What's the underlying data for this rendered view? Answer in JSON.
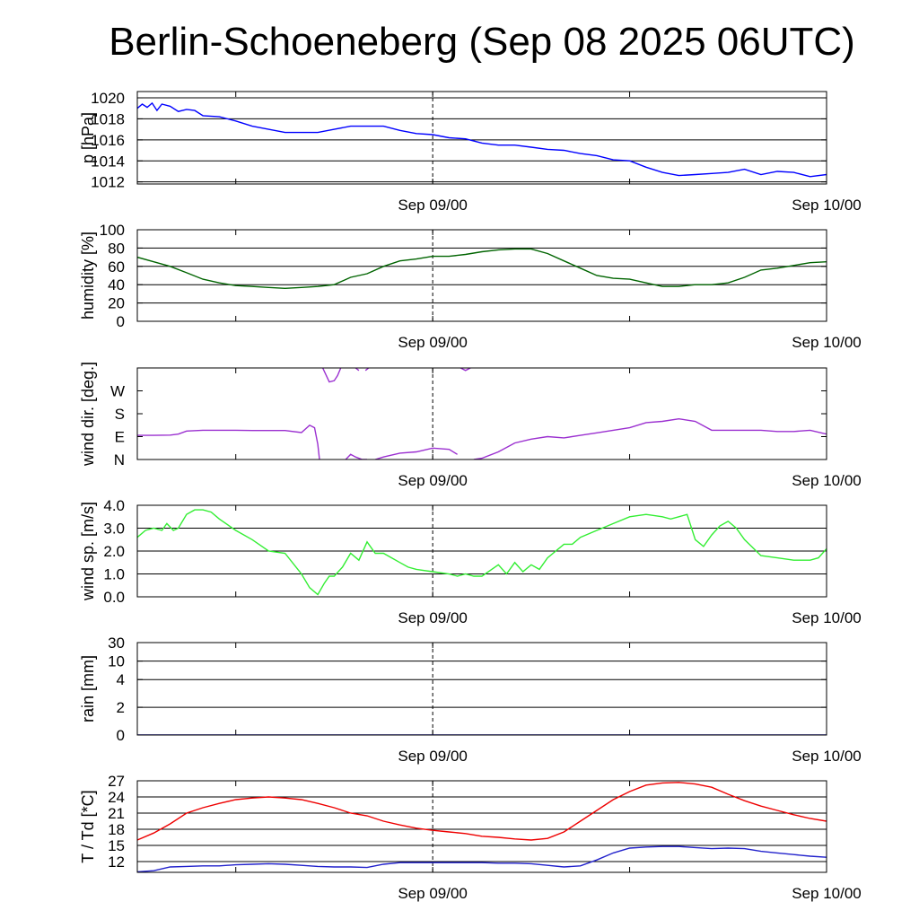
{
  "title": "Berlin-Schoeneberg (Sep 08 2025 06UTC)",
  "time_axis": {
    "start": "Sep 08 06UTC",
    "end": "Sep 10 00UTC",
    "labels": [
      {
        "at_hour": 18,
        "text": "Sep 09/00"
      },
      {
        "at_hour": 42,
        "text": "Sep 10/00"
      }
    ],
    "minor_ticks_hours": [
      6,
      18,
      30,
      42
    ],
    "dashed_line_hour": 18
  },
  "chart_data": [
    {
      "type": "line",
      "ylabel": "p [hPa]",
      "ylim": [
        1011.8,
        1020.6
      ],
      "yticks": [
        1012,
        1014,
        1016,
        1018,
        1020
      ],
      "ytick_labels": [
        "1012",
        "1014",
        "1016",
        "1018",
        "1020"
      ],
      "grid": true,
      "color": "#0000ff",
      "x_hours": [
        0,
        0.3,
        0.6,
        0.9,
        1.2,
        1.5,
        2,
        2.5,
        3,
        3.5,
        4,
        5,
        6,
        7,
        8,
        9,
        10,
        11,
        12,
        13,
        14,
        15,
        16,
        17,
        18,
        19,
        20,
        21,
        22,
        23,
        24,
        25,
        26,
        27,
        28,
        29,
        30,
        31,
        32,
        33,
        34,
        35,
        36,
        37,
        38,
        39,
        40,
        41,
        42
      ],
      "y": [
        1019.0,
        1019.4,
        1019.1,
        1019.5,
        1018.8,
        1019.4,
        1019.2,
        1018.7,
        1018.9,
        1018.8,
        1018.3,
        1018.2,
        1017.8,
        1017.3,
        1017.0,
        1016.7,
        1016.7,
        1016.7,
        1017.0,
        1017.3,
        1017.3,
        1017.3,
        1016.9,
        1016.6,
        1016.5,
        1016.2,
        1016.1,
        1015.7,
        1015.5,
        1015.5,
        1015.3,
        1015.1,
        1015.0,
        1014.7,
        1014.5,
        1014.1,
        1014.0,
        1013.4,
        1012.9,
        1012.6,
        1012.7,
        1012.8,
        1012.9,
        1013.2,
        1012.7,
        1013.0,
        1012.9,
        1012.5,
        1012.7
      ]
    },
    {
      "type": "line",
      "ylabel": "humidity [%]",
      "ylim": [
        0,
        100
      ],
      "yticks": [
        0,
        20,
        40,
        60,
        80,
        100
      ],
      "ytick_labels": [
        "0",
        "20",
        "40",
        "60",
        "80",
        "100"
      ],
      "grid": true,
      "color": "#006400",
      "x_hours": [
        0,
        1,
        2,
        3,
        4,
        5,
        6,
        7,
        8,
        9,
        10,
        11,
        12,
        13,
        14,
        15,
        16,
        17,
        18,
        19,
        20,
        21,
        22,
        23,
        24,
        25,
        26,
        27,
        28,
        29,
        30,
        31,
        32,
        33,
        34,
        35,
        36,
        37,
        38,
        39,
        40,
        41,
        42
      ],
      "y": [
        70,
        65,
        60,
        53,
        46,
        42,
        39,
        38,
        37,
        36,
        37,
        38,
        40,
        48,
        52,
        60,
        66,
        68,
        71,
        71,
        73,
        76,
        78,
        79,
        79,
        74,
        66,
        58,
        50,
        47,
        46,
        42,
        38,
        38,
        40,
        40,
        42,
        48,
        56,
        58,
        61,
        64,
        65
      ]
    },
    {
      "type": "line",
      "ylabel": "wind dir. [deg.]",
      "ylim": [
        0,
        360
      ],
      "yticks": [
        0,
        90,
        180,
        270
      ],
      "ytick_labels": [
        "N",
        "E",
        "S",
        "W"
      ],
      "grid": false,
      "color": "#9b30d0",
      "segments": [
        {
          "x_hours": [
            0,
            1,
            2,
            2.5,
            3,
            4,
            5,
            6,
            7,
            8,
            9,
            10,
            10.5,
            10.8,
            11,
            11.1
          ],
          "y": [
            95,
            95,
            96,
            100,
            112,
            115,
            115,
            115,
            114,
            114,
            114,
            106,
            135,
            125,
            60,
            0
          ]
        },
        {
          "x_hours": [
            11.3,
            11.7,
            12,
            12.2,
            12.4
          ],
          "y": [
            360,
            305,
            310,
            330,
            360
          ]
        },
        {
          "x_hours": [
            13.3,
            13.5
          ],
          "y": [
            360,
            350
          ]
        },
        {
          "x_hours": [
            13.9,
            14.1
          ],
          "y": [
            350,
            360
          ]
        },
        {
          "x_hours": [
            12.7,
            13.0,
            13.3,
            13.7,
            14.0
          ],
          "y": [
            0,
            20,
            10,
            0,
            0
          ]
        },
        {
          "x_hours": [
            14.5,
            15,
            16,
            17,
            18,
            19,
            19.5
          ],
          "y": [
            0,
            10,
            25,
            30,
            45,
            40,
            20
          ]
        },
        {
          "x_hours": [
            19.7,
            20.0,
            20.3
          ],
          "y": [
            360,
            350,
            360
          ]
        },
        {
          "x_hours": [
            20.5,
            21,
            22,
            23,
            24,
            25,
            26,
            27,
            28,
            29,
            30,
            31,
            32,
            33,
            34,
            35,
            36,
            37,
            38,
            39,
            40,
            41,
            42
          ],
          "y": [
            0,
            5,
            30,
            65,
            80,
            90,
            85,
            95,
            105,
            115,
            125,
            145,
            150,
            160,
            150,
            115,
            115,
            115,
            115,
            110,
            110,
            115,
            100
          ]
        }
      ]
    },
    {
      "type": "line",
      "ylabel": "wind sp. [m/s]",
      "ylim": [
        0,
        4.0
      ],
      "yticks": [
        0,
        1,
        2,
        3,
        4
      ],
      "ytick_labels": [
        "0.0",
        "1.0",
        "2.0",
        "3.0",
        "4.0"
      ],
      "grid": true,
      "color": "#33ee33",
      "x_hours": [
        0,
        0.5,
        1,
        1.5,
        1.8,
        2.2,
        2.5,
        3,
        3.5,
        4,
        4.5,
        5,
        6,
        7,
        8,
        9,
        10,
        10.5,
        11,
        11.4,
        11.7,
        12,
        12.5,
        13,
        13.5,
        14,
        14.5,
        15,
        15.5,
        16,
        16.5,
        17,
        18,
        19,
        19.5,
        20,
        20.5,
        21,
        22,
        22.5,
        23,
        23.5,
        24,
        24.5,
        25,
        26,
        26.5,
        27,
        28,
        29,
        30,
        31,
        32,
        32.5,
        33,
        33.5,
        34,
        34.5,
        35,
        35.5,
        36,
        36.5,
        37,
        38,
        39,
        40,
        41,
        41.5,
        42
      ],
      "y": [
        2.6,
        2.9,
        3.0,
        2.9,
        3.2,
        2.9,
        3.0,
        3.6,
        3.8,
        3.8,
        3.7,
        3.4,
        2.9,
        2.5,
        2.0,
        1.9,
        1.0,
        0.4,
        0.1,
        0.6,
        0.9,
        0.9,
        1.3,
        1.9,
        1.6,
        2.4,
        1.9,
        1.9,
        1.7,
        1.5,
        1.3,
        1.2,
        1.1,
        1.0,
        0.9,
        1.0,
        0.9,
        0.9,
        1.4,
        1.0,
        1.5,
        1.1,
        1.4,
        1.2,
        1.7,
        2.3,
        2.3,
        2.6,
        2.9,
        3.2,
        3.5,
        3.6,
        3.5,
        3.4,
        3.5,
        3.6,
        2.5,
        2.2,
        2.7,
        3.1,
        3.3,
        3.0,
        2.5,
        1.8,
        1.7,
        1.6,
        1.6,
        1.7,
        2.1
      ]
    },
    {
      "type": "line",
      "ylabel": "rain [mm]",
      "ylim": [
        0,
        30
      ],
      "yticks": [
        0,
        2,
        4,
        10,
        30
      ],
      "ytick_labels": [
        "0",
        "2",
        "4",
        "10",
        "30"
      ],
      "grid": true,
      "color": "#0000aa",
      "x_hours": [
        0,
        42
      ],
      "y": [
        0,
        0
      ]
    },
    {
      "type": "line",
      "ylabel": "T / Td [*C]",
      "ylim": [
        10,
        27
      ],
      "yticks": [
        12,
        15,
        18,
        21,
        24,
        27
      ],
      "ytick_labels": [
        "12",
        "15",
        "18",
        "21",
        "24",
        "27"
      ],
      "grid": true,
      "series": [
        {
          "color": "#ee0000",
          "x_hours": [
            0,
            1,
            2,
            3,
            4,
            5,
            6,
            7,
            8,
            9,
            10,
            11,
            12,
            13,
            14,
            15,
            16,
            17,
            18,
            19,
            20,
            21,
            22,
            23,
            24,
            25,
            26,
            27,
            28,
            29,
            30,
            31,
            32,
            33,
            34,
            35,
            36,
            37,
            38,
            39,
            40,
            41,
            42
          ],
          "y": [
            16.0,
            17.3,
            19.0,
            21.0,
            22.0,
            22.8,
            23.5,
            23.8,
            24.0,
            23.8,
            23.5,
            22.8,
            22.0,
            21.0,
            20.5,
            19.5,
            18.8,
            18.2,
            17.8,
            17.5,
            17.2,
            16.7,
            16.5,
            16.2,
            16.0,
            16.3,
            17.5,
            19.5,
            21.5,
            23.5,
            25.0,
            26.2,
            26.6,
            26.7,
            26.4,
            25.8,
            24.5,
            23.3,
            22.3,
            21.5,
            20.7,
            20.0,
            19.5
          ]
        },
        {
          "color": "#2222cc",
          "x_hours": [
            0,
            1,
            2,
            3,
            4,
            5,
            6,
            7,
            8,
            9,
            10,
            11,
            12,
            13,
            14,
            15,
            16,
            17,
            18,
            19,
            20,
            21,
            22,
            23,
            24,
            25,
            26,
            27,
            28,
            29,
            30,
            31,
            32,
            33,
            34,
            35,
            36,
            37,
            38,
            39,
            40,
            41,
            42
          ],
          "y": [
            10.1,
            10.3,
            11.0,
            11.1,
            11.2,
            11.2,
            11.4,
            11.5,
            11.6,
            11.5,
            11.3,
            11.1,
            11.0,
            11.0,
            10.9,
            11.5,
            11.8,
            11.8,
            11.8,
            11.8,
            11.8,
            11.8,
            11.7,
            11.7,
            11.6,
            11.3,
            11.0,
            11.2,
            12.3,
            13.6,
            14.5,
            14.7,
            14.8,
            14.8,
            14.6,
            14.4,
            14.5,
            14.4,
            13.9,
            13.6,
            13.3,
            13.0,
            12.8
          ]
        }
      ]
    }
  ]
}
